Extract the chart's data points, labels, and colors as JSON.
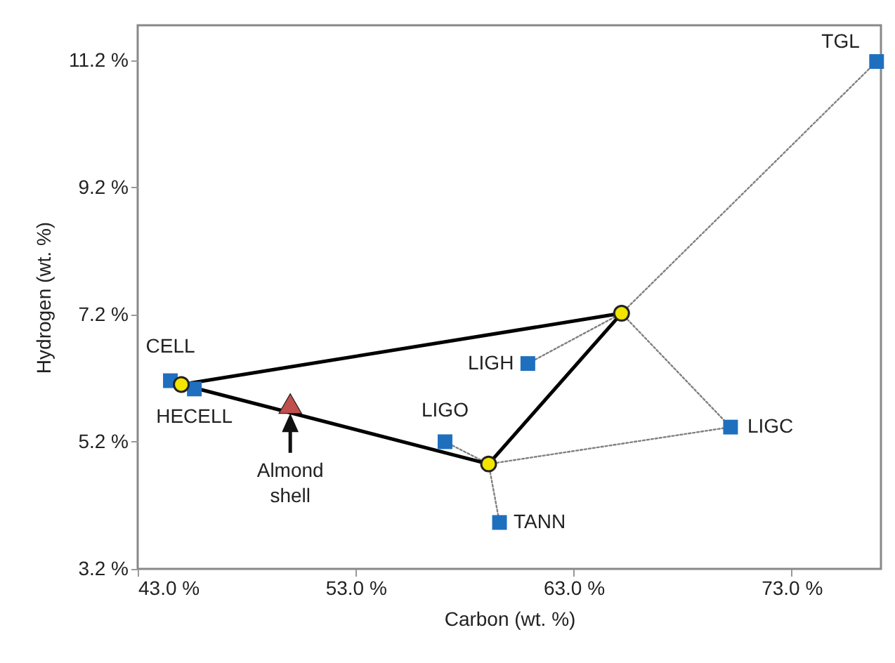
{
  "chart_data": {
    "type": "scatter",
    "xlabel": "Carbon (wt. %)",
    "ylabel": "Hydrogen (wt. %)",
    "xlim": [
      43,
      77.1
    ],
    "ylim": [
      3.2,
      11.75
    ],
    "xticks": [
      {
        "value": 43,
        "label": "43.0 %"
      },
      {
        "value": 53,
        "label": "53.0 %"
      },
      {
        "value": 63,
        "label": "63.0 %"
      },
      {
        "value": 73,
        "label": "73.0 %"
      }
    ],
    "yticks": [
      {
        "value": 3.2,
        "label": "3.2 %"
      },
      {
        "value": 5.2,
        "label": "5.2 %"
      },
      {
        "value": 7.2,
        "label": "7.2 %"
      },
      {
        "value": 9.2,
        "label": "9.2 %"
      },
      {
        "value": 11.2,
        "label": "11.2 %"
      }
    ],
    "grid": false,
    "series": [
      {
        "type": "line",
        "line_style": "dotted",
        "color": "#808080",
        "x": [
          65.2,
          76.9
        ],
        "values": [
          7.22,
          11.18
        ]
      },
      {
        "type": "line",
        "line_style": "dotted",
        "color": "#808080",
        "x": [
          60.9,
          65.2
        ],
        "values": [
          6.43,
          7.22
        ]
      },
      {
        "type": "line",
        "line_style": "dotted",
        "color": "#808080",
        "x": [
          65.2,
          70.2
        ],
        "values": [
          7.22,
          5.43
        ]
      },
      {
        "type": "line",
        "line_style": "dotted",
        "color": "#808080",
        "x": [
          59.1,
          70.2
        ],
        "values": [
          4.85,
          5.43
        ]
      },
      {
        "type": "line",
        "line_style": "dotted",
        "color": "#808080",
        "x": [
          59.1,
          59.6
        ],
        "values": [
          4.85,
          3.93
        ]
      },
      {
        "type": "line",
        "line_style": "dotted",
        "color": "#808080",
        "x": [
          57.1,
          59.1
        ],
        "values": [
          5.2,
          4.85
        ]
      },
      {
        "type": "line",
        "line_style": "solid",
        "color": "#000000",
        "x": [
          45.0,
          65.2
        ],
        "values": [
          6.1,
          7.22
        ]
      },
      {
        "type": "line",
        "line_style": "solid",
        "color": "#000000",
        "x": [
          59.1,
          65.2
        ],
        "values": [
          4.85,
          7.22
        ]
      },
      {
        "type": "line",
        "line_style": "solid",
        "color": "#000000",
        "x": [
          45.0,
          59.1
        ],
        "values": [
          6.1,
          4.85
        ]
      },
      {
        "marker": "square",
        "color": "#1f6fbf",
        "x": [
          76.9,
          44.5,
          45.6,
          60.9,
          57.1,
          70.2,
          59.6
        ],
        "values": [
          11.18,
          6.16,
          6.03,
          6.43,
          5.2,
          5.43,
          3.93
        ],
        "value_labels": [
          "TGL",
          "CELL",
          "HECELL",
          "LIGH",
          "LIGO",
          "LIGC",
          "TANN"
        ]
      },
      {
        "marker": "circle",
        "color": "#f2e500",
        "x": [
          45.0,
          65.2,
          59.1
        ],
        "values": [
          6.1,
          7.22,
          4.85
        ]
      },
      {
        "marker": "triangle",
        "color": "#c0504d",
        "x": [
          50.0
        ],
        "values": [
          5.8
        ]
      }
    ],
    "annotations": [
      "Almond shell"
    ]
  }
}
